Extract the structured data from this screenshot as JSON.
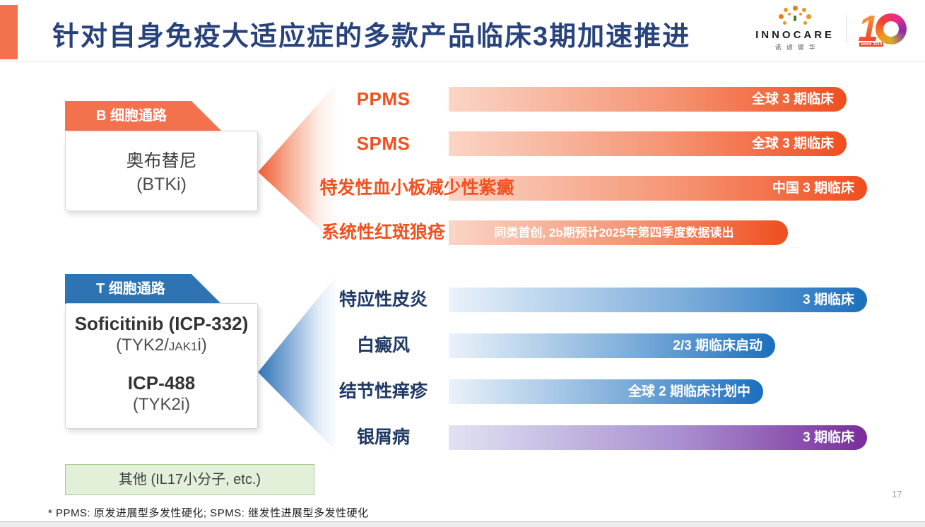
{
  "header": {
    "title": "针对自身免疫大适应症的多款产品临床3期加速推进",
    "logo": {
      "brand": "INNOCARE",
      "brand_cn": "诺诚健华",
      "anniversary_number_1": "1",
      "anniversary_note": "since 2015"
    },
    "page_number": "17"
  },
  "b_pathway": {
    "banner": "B 细胞通路",
    "drug_name": "奥布替尼",
    "drug_detail": "(BTKi)"
  },
  "t_pathway": {
    "banner": "T 细胞通路",
    "drug1_name": "Soficitinib (ICP-332)",
    "drug1_detail_pre": "(TYK2/",
    "drug1_detail_small": "JAK1",
    "drug1_detail_post": "i)",
    "drug2_name": "ICP-488",
    "drug2_detail": "(TYK2i)"
  },
  "other_box": {
    "label": "其他 (IL17小分子, etc.)"
  },
  "indications": [
    {
      "label": "PPMS",
      "status": "全球 3 期临床",
      "pathway": "B"
    },
    {
      "label": "SPMS",
      "status": "全球 3 期临床",
      "pathway": "B"
    },
    {
      "label": "特发性血小板减少性紫癜",
      "status": "中国 3 期临床",
      "pathway": "B"
    },
    {
      "label": "系统性红斑狼疮",
      "status": "同类首创, 2b期预计2025年第四季度数据读出",
      "pathway": "B"
    },
    {
      "label": "特应性皮炎",
      "status": "3 期临床",
      "pathway": "T"
    },
    {
      "label": "白癜风",
      "status": "2/3 期临床启动",
      "pathway": "T"
    },
    {
      "label": "结节性痒疹",
      "status": "全球 2 期临床计划中",
      "pathway": "T"
    },
    {
      "label": "银屑病",
      "status": "3 期临床",
      "pathway": "T"
    }
  ],
  "footnote": "* PPMS: 原发进展型多发性硬化; SPMS: 继发性进展型多发性硬化",
  "colors": {
    "accent_orange": "#F4714E",
    "bar_orange_end": "#F04E1F",
    "accent_blue": "#2E74B5",
    "bar_blue_end": "#1B6FBE",
    "bar_purple_end": "#7A2D9B",
    "title_navy": "#28437C",
    "label_navy": "#1F3864",
    "label_orange": "#F3501F",
    "other_green_bg": "#E2EFD9"
  }
}
